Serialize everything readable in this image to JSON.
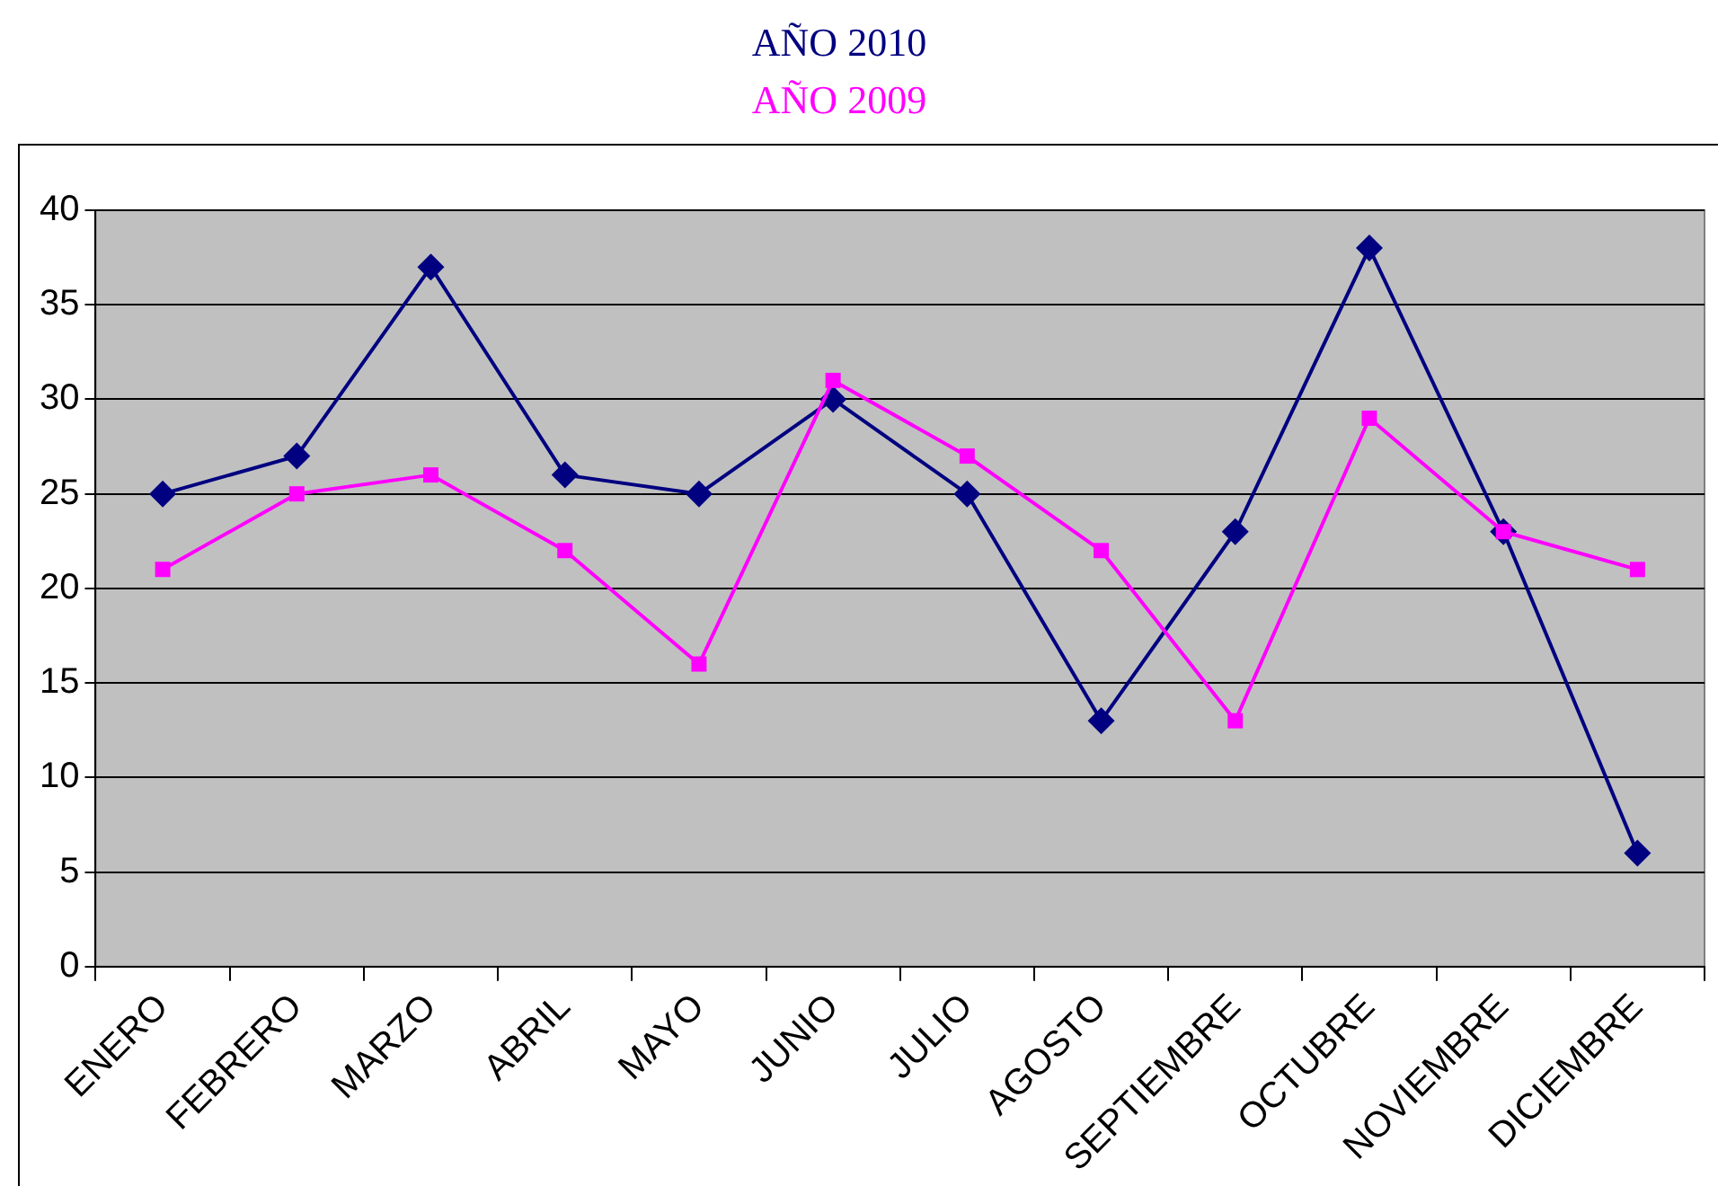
{
  "chart_data": {
    "type": "line",
    "categories": [
      "ENERO",
      "FEBRERO",
      "MARZO",
      "ABRIL",
      "MAYO",
      "JUNIO",
      "JULIO",
      "AGOSTO",
      "SEPTIEMBRE",
      "OCTUBRE",
      "NOVIEMBRE",
      "DICIEMBRE"
    ],
    "series": [
      {
        "name": "AÑO 2010",
        "color": "#000080",
        "marker": "diamond",
        "values": [
          25,
          27,
          37,
          26,
          25,
          30,
          25,
          13,
          23,
          38,
          23,
          6
        ]
      },
      {
        "name": "AÑO 2009",
        "color": "#ff00ff",
        "marker": "square",
        "values": [
          21,
          25,
          26,
          22,
          16,
          31,
          27,
          22,
          13,
          29,
          23,
          21
        ]
      }
    ],
    "ylim": [
      0,
      40
    ],
    "yticks": [
      0,
      5,
      10,
      15,
      20,
      25,
      30,
      35,
      40
    ],
    "grid": "y",
    "legend": "top",
    "line_style": "solid"
  }
}
